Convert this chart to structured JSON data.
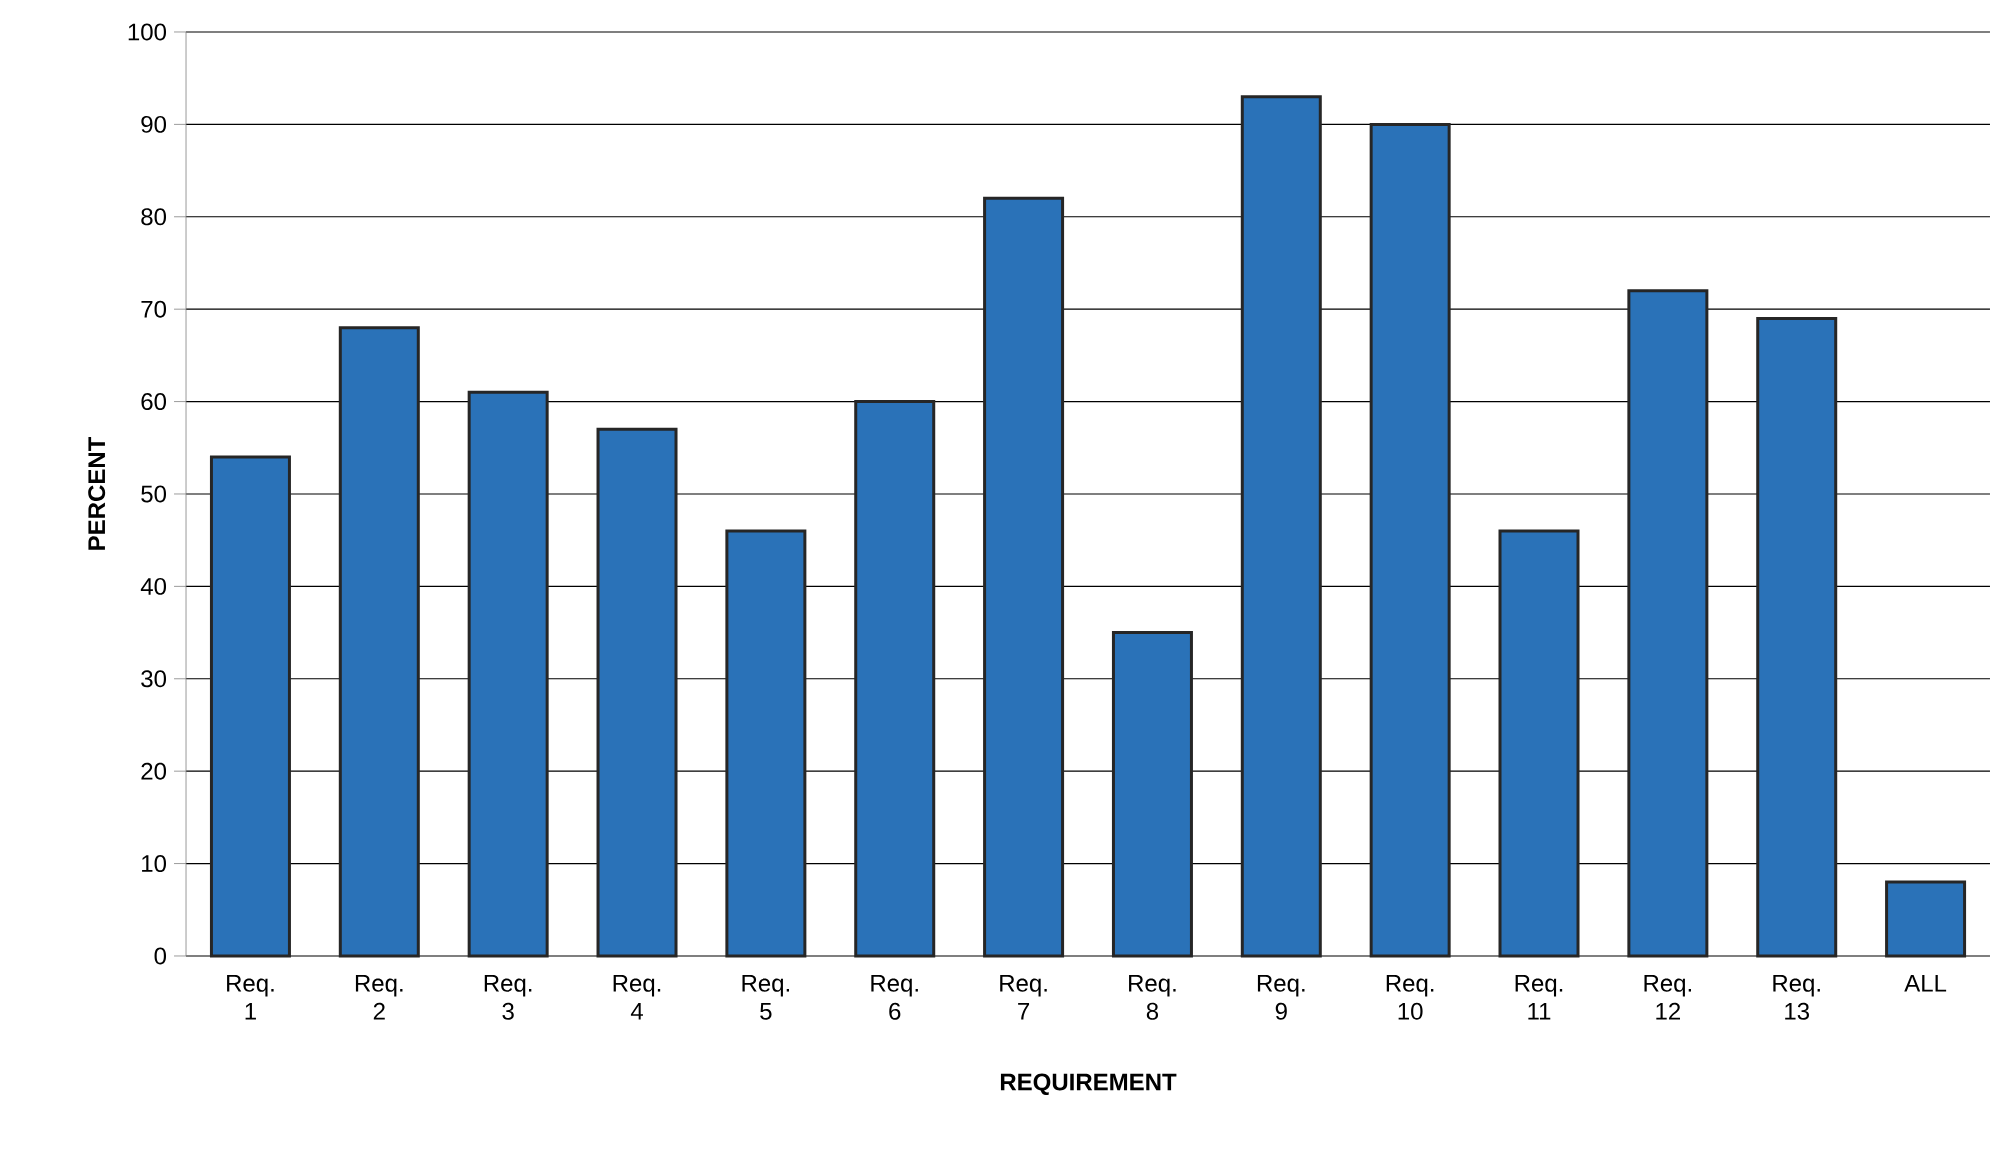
{
  "chart_data": {
    "type": "bar",
    "xlabel": "REQUIREMENT",
    "ylabel": "PERCENT",
    "categories": [
      "Req. 1",
      "Req. 2",
      "Req. 3",
      "Req. 4",
      "Req. 5",
      "Req. 6",
      "Req. 7",
      "Req. 8",
      "Req. 9",
      "Req. 10",
      "Req. 11",
      "Req. 12",
      "Req. 13",
      "ALL"
    ],
    "values": [
      54,
      68,
      61,
      57,
      46,
      60,
      82,
      35,
      93,
      90,
      46,
      72,
      69,
      8
    ],
    "color": "#2a72b8",
    "ylim": [
      0,
      100
    ],
    "yticks": [
      0,
      10,
      20,
      30,
      40,
      50,
      60,
      70,
      80,
      90,
      100
    ],
    "grid": "y"
  }
}
